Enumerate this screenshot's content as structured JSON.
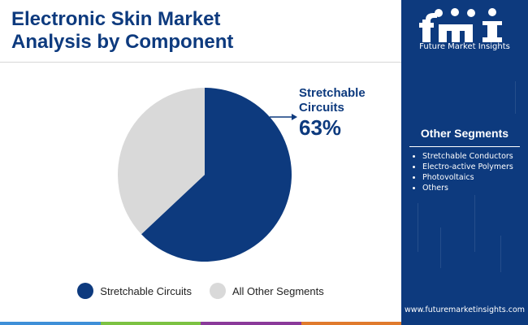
{
  "header": {
    "title_line1": "Electronic Skin Market",
    "title_line2": "Analysis by Component"
  },
  "brand": {
    "logo_text": "fmi",
    "name": "Future Market Insights",
    "url": "www.futuremarketinsights.com"
  },
  "sidebar": {
    "heading": "Other Segments",
    "items": [
      "Stretchable Conductors",
      "Electro-active Polymers",
      "Photovoltaics",
      "Others"
    ]
  },
  "callout": {
    "label": "Stretchable Circuits",
    "value": "63%"
  },
  "colors": {
    "navy": "#0d3a7e",
    "grey": "#d9d9d9",
    "stripe": [
      "#3e8fd8",
      "#7cc242",
      "#8a3a9a",
      "#e07a2c"
    ]
  },
  "chart_data": {
    "type": "pie",
    "title": "Electronic Skin Market Analysis by Component",
    "slices": [
      {
        "label": "Stretchable Circuits",
        "value": 63,
        "color": "#0d3a7e"
      },
      {
        "label": "All Other Segments",
        "value": 37,
        "color": "#d9d9d9"
      }
    ],
    "start_angle_deg": 0,
    "direction": "clockwise",
    "legend_position": "bottom"
  }
}
